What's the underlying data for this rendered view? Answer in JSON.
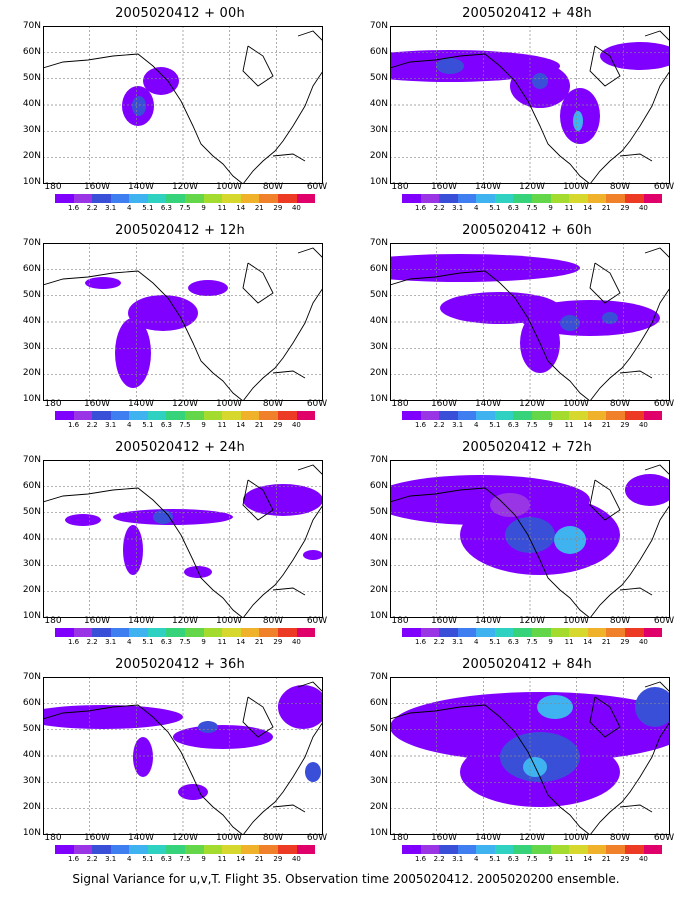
{
  "footer": "Signal Variance for u,v,T. Flight 35. Observation time 2005020412. 2005020200 ensemble.",
  "lat_labels": [
    "70N",
    "60N",
    "50N",
    "40N",
    "30N",
    "20N",
    "10N"
  ],
  "lon_labels": [
    "180",
    "160W",
    "140W",
    "120W",
    "100W",
    "80W",
    "60W"
  ],
  "colorbar": {
    "colors": [
      "#7f00ff",
      "#9a35e6",
      "#3a4fd8",
      "#3f7ef0",
      "#3fb3f0",
      "#2fd2c0",
      "#36d37a",
      "#63d64a",
      "#a3dc2f",
      "#d7d82d",
      "#f0b22a",
      "#f0802a",
      "#ec3a24",
      "#e0006a"
    ],
    "labels": [
      "1.6",
      "2.2",
      "3.1",
      "4",
      "5.1",
      "6.3",
      "7.5",
      "9",
      "11",
      "14",
      "21",
      "29",
      "40"
    ]
  },
  "panels": [
    {
      "id": "p00",
      "title": "2005020412 + 00h"
    },
    {
      "id": "p48",
      "title": "2005020412 + 48h"
    },
    {
      "id": "p12",
      "title": "2005020412 + 12h"
    },
    {
      "id": "p60",
      "title": "2005020412 + 60h"
    },
    {
      "id": "p24",
      "title": "2005020412 + 24h"
    },
    {
      "id": "p72",
      "title": "2005020412 + 72h"
    },
    {
      "id": "p36",
      "title": "2005020412 + 36h"
    },
    {
      "id": "p84",
      "title": "2005020412 + 84h"
    }
  ]
}
